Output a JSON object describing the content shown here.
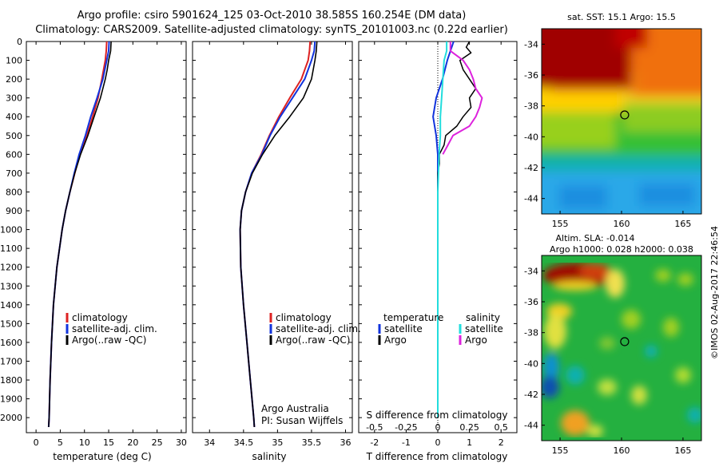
{
  "header": {
    "line1": "Argo profile: csiro 5901624_125 03-Oct-2010 38.585S 160.254E (DM data)",
    "line2": "Climatology: CARS2009. Satellite-adjusted climatology: synTS_20101003.nc (0.22d earlier)"
  },
  "depth_ticks": [
    0,
    100,
    200,
    300,
    400,
    500,
    600,
    700,
    800,
    900,
    1000,
    1100,
    1200,
    1300,
    1400,
    1500,
    1600,
    1700,
    1800,
    1900,
    2000
  ],
  "legend": {
    "climatology": "climatology",
    "satellite_adj": "satellite-adj. clim.",
    "argo": "Argo(..raw -QC)"
  },
  "credit": {
    "line1": "Argo Australia",
    "line2": "PI: Susan Wijffels"
  },
  "diff_legend": {
    "temperature_head": "temperature",
    "salinity_head": "salinity",
    "satellite": "satellite",
    "argo": "Argo"
  },
  "map1": {
    "title": "sat. SST: 15.1 Argo: 15.5"
  },
  "map2": {
    "title1": "Altim. SLA: -0.014",
    "title2": "Argo h1000: 0.028 h2000: 0.038"
  },
  "side_stamp": "©IMOS 02-Aug-2017 22:46:54",
  "colors": {
    "climatology": "#dd2222",
    "satellite": "#1133dd",
    "argo": "#000000",
    "sal_satellite": "#22dddd",
    "sal_argo": "#dd22dd"
  },
  "chart_data": [
    {
      "type": "line",
      "xlabel": "temperature (deg C)",
      "ylabel": "",
      "xlim": [
        -2,
        31
      ],
      "ylim": [
        2080,
        0
      ],
      "xticks": [
        0,
        5,
        10,
        15,
        20,
        25,
        30
      ],
      "series": [
        {
          "name": "climatology",
          "depth": [
            0,
            50,
            100,
            200,
            300,
            400,
            500,
            600,
            700,
            800,
            900,
            1000,
            1200,
            1400,
            1600,
            1800,
            2000,
            2050
          ],
          "values": [
            14.6,
            14.5,
            14.3,
            13.6,
            12.8,
            11.7,
            10.5,
            9.0,
            8.0,
            7.0,
            6.1,
            5.4,
            4.3,
            3.6,
            3.2,
            2.9,
            2.7,
            2.6
          ]
        },
        {
          "name": "satellite-adj. clim.",
          "depth": [
            0,
            50,
            100,
            200,
            300,
            400,
            500,
            600,
            700,
            800,
            900,
            1000,
            1200,
            1400,
            1600,
            1800,
            2000,
            2050
          ],
          "values": [
            15.1,
            15.0,
            14.6,
            13.8,
            12.6,
            11.3,
            10.2,
            8.9,
            7.9,
            7.0,
            6.1,
            5.4,
            4.3,
            3.6,
            3.2,
            2.9,
            2.7,
            2.6
          ]
        },
        {
          "name": "Argo(..raw -QC)",
          "depth": [
            0,
            50,
            100,
            150,
            200,
            300,
            400,
            500,
            600,
            700,
            800,
            900,
            1000,
            1200,
            1400,
            1600,
            1800,
            2000,
            2050
          ],
          "values": [
            15.5,
            15.4,
            15.0,
            14.7,
            14.3,
            13.3,
            12.0,
            10.7,
            9.2,
            8.0,
            7.0,
            6.1,
            5.4,
            4.3,
            3.6,
            3.2,
            2.9,
            2.7,
            2.6
          ]
        }
      ]
    },
    {
      "type": "line",
      "xlabel": "salinity",
      "ylabel": "",
      "xlim": [
        33.75,
        36.1
      ],
      "ylim": [
        2080,
        0
      ],
      "xticks": [
        34,
        34.5,
        35,
        35.5,
        36
      ],
      "series": [
        {
          "name": "climatology",
          "depth": [
            0,
            50,
            100,
            200,
            300,
            400,
            500,
            600,
            700,
            800,
            900,
            1000,
            1200,
            1400,
            1600,
            1800,
            2000,
            2050
          ],
          "values": [
            35.48,
            35.47,
            35.45,
            35.35,
            35.18,
            35.02,
            34.88,
            34.76,
            34.62,
            34.53,
            34.47,
            34.45,
            34.46,
            34.5,
            34.55,
            34.6,
            34.65,
            34.66
          ]
        },
        {
          "name": "satellite-adj. clim.",
          "depth": [
            0,
            50,
            100,
            200,
            300,
            400,
            500,
            600,
            700,
            800,
            900,
            1000,
            1200,
            1400,
            1600,
            1800,
            2000,
            2050
          ],
          "values": [
            35.55,
            35.54,
            35.5,
            35.4,
            35.22,
            35.04,
            34.89,
            34.77,
            34.62,
            34.53,
            34.47,
            34.45,
            34.46,
            34.5,
            34.55,
            34.6,
            34.65,
            34.66
          ]
        },
        {
          "name": "Argo(..raw -QC)",
          "depth": [
            0,
            50,
            100,
            200,
            300,
            400,
            500,
            600,
            700,
            800,
            900,
            1000,
            1200,
            1400,
            1600,
            1800,
            2000,
            2050
          ],
          "values": [
            35.58,
            35.57,
            35.55,
            35.5,
            35.38,
            35.18,
            34.96,
            34.78,
            34.63,
            34.53,
            34.47,
            34.45,
            34.46,
            34.5,
            34.55,
            34.6,
            34.65,
            34.66
          ]
        }
      ]
    },
    {
      "type": "line",
      "xlabel": "T difference from climatology",
      "ylabel": "",
      "top_axis_label": "S difference from climatology",
      "xlim": [
        -2.5,
        2.5
      ],
      "ylim": [
        2080,
        0
      ],
      "xticks": [
        -2,
        -1,
        0,
        1,
        2
      ],
      "top_ticks": [
        "-0.5",
        "-0.25",
        "0",
        "0.25",
        "0.5"
      ],
      "series": [
        {
          "name": "temperature satellite",
          "depth": [
            0,
            50,
            100,
            200,
            300,
            400,
            500,
            600,
            800,
            1000,
            1500,
            2000
          ],
          "values": [
            0.5,
            0.4,
            0.3,
            0.15,
            -0.05,
            -0.15,
            -0.05,
            0.0,
            0.0,
            0.0,
            0.0,
            0.0
          ]
        },
        {
          "name": "temperature Argo",
          "depth": [
            0,
            30,
            60,
            100,
            150,
            200,
            250,
            300,
            350,
            400,
            450,
            500,
            550,
            600,
            650,
            700,
            800,
            1000,
            1500,
            2000
          ],
          "values": [
            1.0,
            0.9,
            1.05,
            0.7,
            0.8,
            1.0,
            1.2,
            1.0,
            1.05,
            0.8,
            0.6,
            0.25,
            0.2,
            0.05,
            0.05,
            0.0,
            0.0,
            0.0,
            0.0,
            0.0
          ]
        },
        {
          "name": "salinity satellite",
          "depth": [
            0,
            50,
            100,
            200,
            300,
            400,
            500,
            600,
            800,
            1000,
            1500,
            2000
          ],
          "values": [
            0.07,
            0.07,
            0.05,
            0.04,
            0.03,
            0.02,
            0.02,
            0.01,
            0.0,
            0.0,
            0.0,
            0.0
          ]
        },
        {
          "name": "salinity Argo",
          "depth": [
            0,
            50,
            100,
            150,
            200,
            250,
            300,
            350,
            400,
            450,
            500,
            550,
            600
          ],
          "values": [
            0.1,
            0.1,
            0.2,
            0.25,
            0.28,
            0.3,
            0.35,
            0.33,
            0.3,
            0.25,
            0.12,
            0.08,
            0.04
          ]
        }
      ]
    },
    {
      "type": "heatmap",
      "title": "sat. SST: 15.1 Argo: 15.5",
      "xticks": [
        155,
        160,
        165
      ],
      "yticks": [
        -34,
        -36,
        -38,
        -40,
        -42,
        -44
      ],
      "xlim": [
        153.5,
        166.5
      ],
      "ylim": [
        -45,
        -33
      ],
      "marker": {
        "lon": 160.254,
        "lat": -38.585
      }
    },
    {
      "type": "heatmap",
      "title": "Altim. SLA: -0.014",
      "xticks": [
        155,
        160,
        165
      ],
      "yticks": [
        -34,
        -36,
        -38,
        -40,
        -42,
        -44
      ],
      "xlim": [
        153.5,
        166.5
      ],
      "ylim": [
        -45,
        -33
      ],
      "marker": {
        "lon": 160.254,
        "lat": -38.585
      }
    }
  ]
}
